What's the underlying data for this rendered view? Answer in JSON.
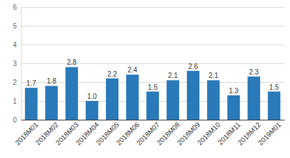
{
  "chart_data": {
    "type": "bar",
    "categories": [
      "2018M01",
      "2018M02",
      "2018M03",
      "2018M04",
      "2018M05",
      "2018M06",
      "2018M07",
      "2018M08",
      "2018M09",
      "2018M10",
      "2018M11",
      "2018M12",
      "2019M01"
    ],
    "values": [
      1.7,
      1.8,
      2.8,
      1.0,
      2.2,
      2.4,
      1.5,
      2.1,
      2.6,
      2.1,
      1.3,
      2.3,
      1.5
    ],
    "value_labels": [
      "1.7",
      "1.8",
      "2.8",
      "1.0",
      "2.2",
      "2.4",
      "1.5",
      "2.1",
      "2.6",
      "2.1",
      "1.3",
      "2.3",
      "1.5"
    ],
    "color": "#2a79b8",
    "ylim": [
      0,
      6
    ],
    "yticks": [
      0,
      1,
      2,
      3,
      4,
      5,
      6
    ],
    "grid": true,
    "data_labels": true
  }
}
